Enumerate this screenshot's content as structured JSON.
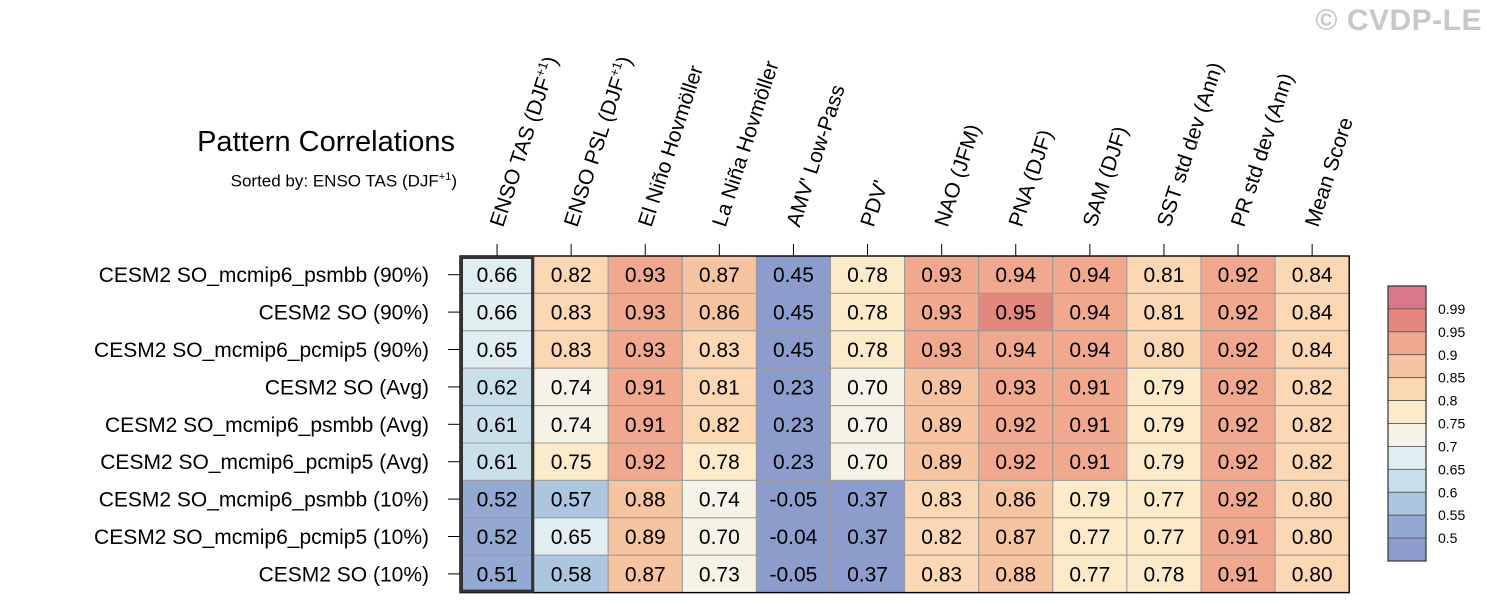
{
  "watermark": "© CVDP-LE",
  "chart_data": {
    "type": "heatmap",
    "title": "Pattern Correlations",
    "subtitle_prefix": "Sorted by: ENSO TAS (DJF",
    "subtitle_sup": "+1",
    "subtitle_suffix": ")",
    "columns": [
      {
        "label": "ENSO TAS (DJF",
        "sup": "+1",
        "suffix": ")"
      },
      {
        "label": "ENSO PSL (DJF",
        "sup": "+1",
        "suffix": ")"
      },
      {
        "label": "El Niño Hovmöller"
      },
      {
        "label": "La Niña Hovmöller"
      },
      {
        "label": "AMV' Low-Pass"
      },
      {
        "label": "PDV'"
      },
      {
        "label": "NAO (JFM)"
      },
      {
        "label": "PNA (DJF)"
      },
      {
        "label": "SAM (DJF)"
      },
      {
        "label": "SST std dev (Ann)"
      },
      {
        "label": "PR std dev (Ann)"
      },
      {
        "label": "Mean Score"
      }
    ],
    "rows": [
      "CESM2 SO_mcmip6_psmbb (90%)",
      "CESM2 SO (90%)",
      "CESM2 SO_mcmip6_pcmip5 (90%)",
      "CESM2 SO (Avg)",
      "CESM2 SO_mcmip6_psmbb (Avg)",
      "CESM2 SO_mcmip6_pcmip5 (Avg)",
      "CESM2 SO_mcmip6_psmbb (10%)",
      "CESM2 SO_mcmip6_pcmip5 (10%)",
      "CESM2 SO (10%)"
    ],
    "values": [
      [
        "0.66",
        "0.82",
        "0.93",
        "0.87",
        "0.45",
        "0.78",
        "0.93",
        "0.94",
        "0.94",
        "0.81",
        "0.92",
        "0.84"
      ],
      [
        "0.66",
        "0.83",
        "0.93",
        "0.86",
        "0.45",
        "0.78",
        "0.93",
        "0.95",
        "0.94",
        "0.81",
        "0.92",
        "0.84"
      ],
      [
        "0.65",
        "0.83",
        "0.93",
        "0.83",
        "0.45",
        "0.78",
        "0.93",
        "0.94",
        "0.94",
        "0.80",
        "0.92",
        "0.84"
      ],
      [
        "0.62",
        "0.74",
        "0.91",
        "0.81",
        "0.23",
        "0.70",
        "0.89",
        "0.93",
        "0.91",
        "0.79",
        "0.92",
        "0.82"
      ],
      [
        "0.61",
        "0.74",
        "0.91",
        "0.82",
        "0.23",
        "0.70",
        "0.89",
        "0.92",
        "0.91",
        "0.79",
        "0.92",
        "0.82"
      ],
      [
        "0.61",
        "0.75",
        "0.92",
        "0.78",
        "0.23",
        "0.70",
        "0.89",
        "0.92",
        "0.91",
        "0.79",
        "0.92",
        "0.82"
      ],
      [
        "0.52",
        "0.57",
        "0.88",
        "0.74",
        "-0.05",
        "0.37",
        "0.83",
        "0.86",
        "0.79",
        "0.77",
        "0.92",
        "0.80"
      ],
      [
        "0.52",
        "0.65",
        "0.89",
        "0.70",
        "-0.04",
        "0.37",
        "0.82",
        "0.87",
        "0.77",
        "0.77",
        "0.91",
        "0.80"
      ],
      [
        "0.51",
        "0.58",
        "0.87",
        "0.73",
        "-0.05",
        "0.37",
        "0.83",
        "0.88",
        "0.77",
        "0.78",
        "0.91",
        "0.80"
      ]
    ],
    "highlight_column": 0,
    "colorbar": {
      "labels": [
        "0.99",
        "0.95",
        "0.9",
        "0.85",
        "0.8",
        "0.75",
        "0.7",
        "0.65",
        "0.6",
        "0.55",
        "0.5"
      ],
      "bins": [
        {
          "color": "#d8788a",
          "lo": 0.99,
          "hi": 1.0
        },
        {
          "color": "#e3877f",
          "lo": 0.95,
          "hi": 0.99
        },
        {
          "color": "#f0a98f",
          "lo": 0.9,
          "hi": 0.95
        },
        {
          "color": "#f7c4a2",
          "lo": 0.85,
          "hi": 0.9
        },
        {
          "color": "#fbd7b4",
          "lo": 0.8,
          "hi": 0.85
        },
        {
          "color": "#fdeac9",
          "lo": 0.75,
          "hi": 0.8
        },
        {
          "color": "#f6f3e6",
          "lo": 0.7,
          "hi": 0.75
        },
        {
          "color": "#e0eef2",
          "lo": 0.65,
          "hi": 0.7
        },
        {
          "color": "#c9e0ea",
          "lo": 0.6,
          "hi": 0.65
        },
        {
          "color": "#acc6df",
          "lo": 0.55,
          "hi": 0.6
        },
        {
          "color": "#93a9d2",
          "lo": 0.5,
          "hi": 0.55
        },
        {
          "color": "#8c9dcd",
          "lo": -1.0,
          "hi": 0.5
        }
      ]
    }
  }
}
